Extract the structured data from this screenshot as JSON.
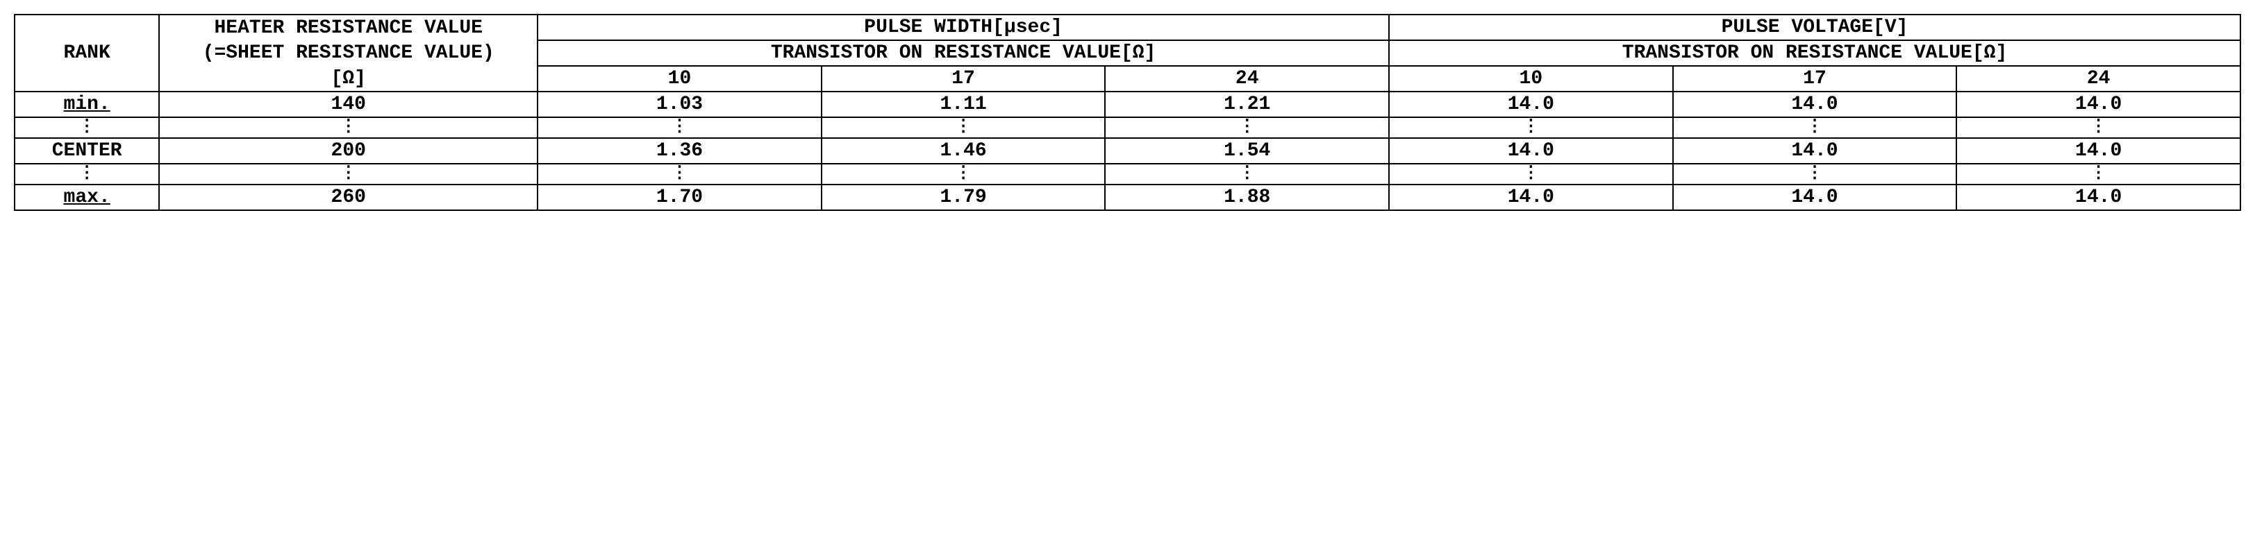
{
  "table": {
    "headers": {
      "rank": "RANK",
      "heater_line1": "HEATER RESISTANCE VALUE",
      "heater_line2": "(=SHEET RESISTANCE VALUE)",
      "heater_line3": "[Ω]",
      "pulse_width": "PULSE WIDTH[μsec]",
      "pulse_voltage": "PULSE VOLTAGE[V]",
      "transistor_label": "TRANSISTOR ON RESISTANCE VALUE[Ω]",
      "sub_values": [
        "10",
        "17",
        "24"
      ]
    },
    "rows": [
      {
        "rank": "min.",
        "heater": "140",
        "pulse_width": [
          "1.03",
          "1.11",
          "1.21"
        ],
        "pulse_voltage": [
          "14.0",
          "14.0",
          "14.0"
        ]
      },
      {
        "rank": "⋮",
        "heater": "⋮",
        "pulse_width": [
          "⋮",
          "⋮",
          "⋮"
        ],
        "pulse_voltage": [
          "⋮",
          "⋮",
          "⋮"
        ]
      },
      {
        "rank": "CENTER",
        "heater": "200",
        "pulse_width": [
          "1.36",
          "1.46",
          "1.54"
        ],
        "pulse_voltage": [
          "14.0",
          "14.0",
          "14.0"
        ]
      },
      {
        "rank": "⋮",
        "heater": "⋮",
        "pulse_width": [
          "⋮",
          "⋮",
          "⋮"
        ],
        "pulse_voltage": [
          "⋮",
          "⋮",
          "⋮"
        ]
      },
      {
        "rank": "max.",
        "heater": "260",
        "pulse_width": [
          "1.70",
          "1.79",
          "1.88"
        ],
        "pulse_voltage": [
          "14.0",
          "14.0",
          "14.0"
        ]
      }
    ]
  }
}
